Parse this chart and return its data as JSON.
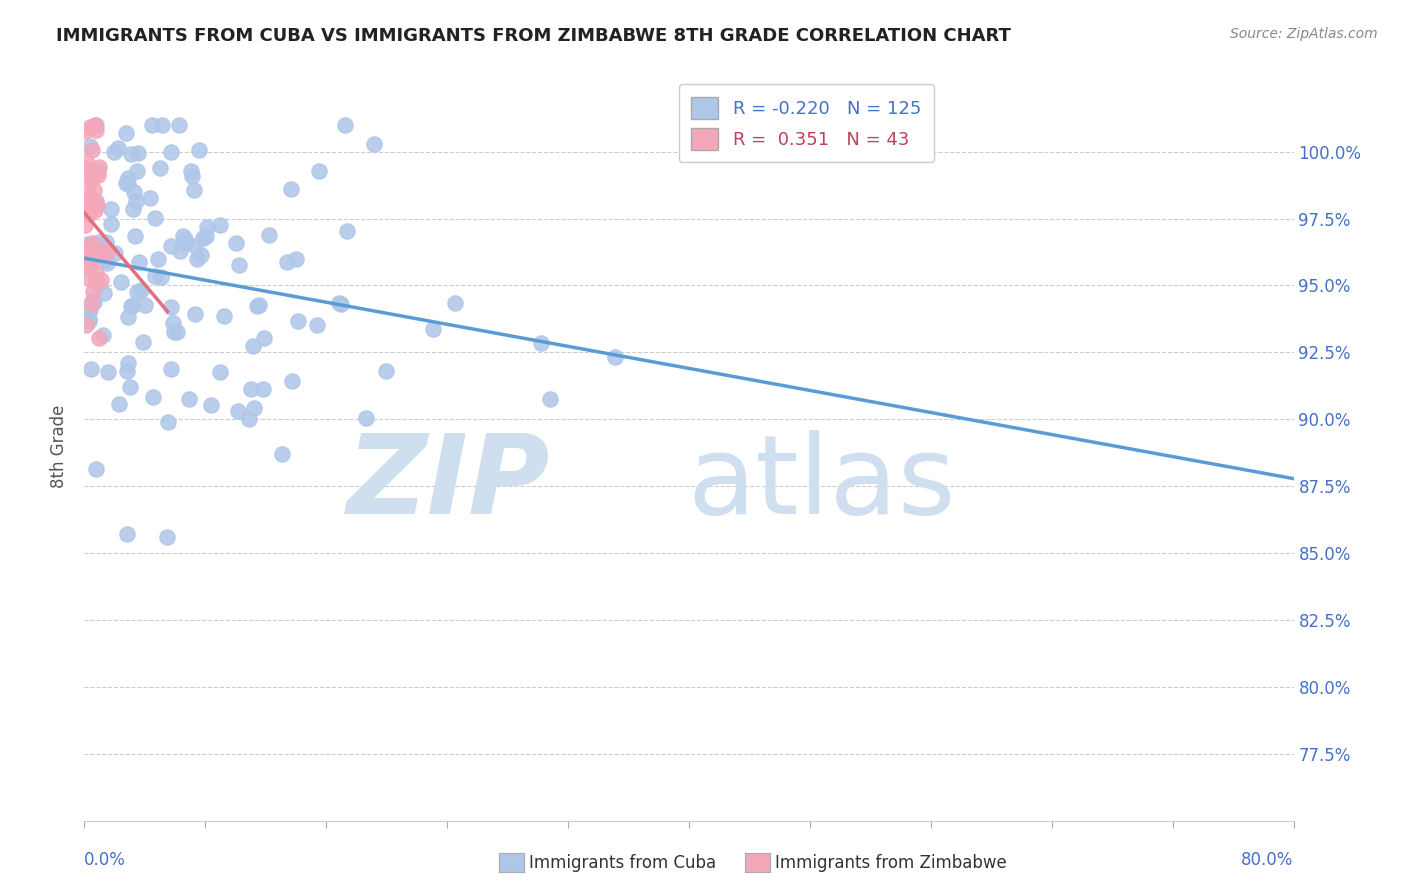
{
  "title": "IMMIGRANTS FROM CUBA VS IMMIGRANTS FROM ZIMBABWE 8TH GRADE CORRELATION CHART",
  "source": "Source: ZipAtlas.com",
  "ylabel": "8th Grade",
  "ylabel_right_ticks": [
    77.5,
    80.0,
    82.5,
    85.0,
    87.5,
    90.0,
    92.5,
    95.0,
    97.5,
    100.0
  ],
  "xlim": [
    0.0,
    80.0
  ],
  "ylim": [
    75.0,
    103.0
  ],
  "r_cuba": -0.22,
  "n_cuba": 125,
  "r_zimbabwe": 0.351,
  "n_zimbabwe": 43,
  "color_cuba": "#aec6e8",
  "color_zimbabwe": "#f4a7b9",
  "trendline_cuba": "#5b9bd5",
  "trendline_zimbabwe": "#e07080",
  "watermark_zip": "ZIP",
  "watermark_atlas": "atlas",
  "watermark_color": "#d0dff0",
  "background_color": "#ffffff",
  "seed_cuba": 10,
  "seed_zim": 20
}
